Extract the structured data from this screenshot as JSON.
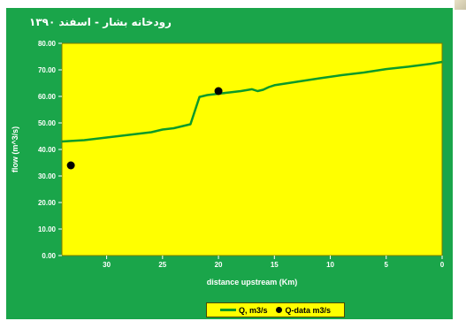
{
  "colors": {
    "panel": "#1aa54a",
    "plot_area": "#ffff00",
    "series_line": "#0b9a2a",
    "markers": "#000000",
    "text": "#ffffff"
  },
  "chart_data": {
    "type": "line",
    "title": "رودخانه بشار - اسفند ۱۳۹۰",
    "xlabel": "distance upstream (Km)",
    "ylabel": "flow (m^3/s)",
    "xlim": [
      34,
      0
    ],
    "ylim": [
      0,
      80
    ],
    "x_reversed": true,
    "xticks": [
      30,
      25,
      20,
      15,
      10,
      5,
      0
    ],
    "xtick_labels": [
      "30",
      "25",
      "20",
      "15",
      "10",
      "5",
      "0"
    ],
    "yticks": [
      0,
      10,
      20,
      30,
      40,
      50,
      60,
      70,
      80
    ],
    "ytick_labels": [
      "0.00",
      "10.00",
      "20.00",
      "30.00",
      "40.00",
      "50.00",
      "60.00",
      "70.00",
      "80.00"
    ],
    "grid": false,
    "legend_position": "bottom-center",
    "series": [
      {
        "name": "Q, m3/s",
        "kind": "line",
        "x": [
          34,
          32,
          30,
          28,
          27,
          26,
          25,
          24,
          23,
          22.5,
          21.7,
          21,
          20,
          19,
          18,
          17,
          16.5,
          16,
          15.5,
          15,
          13,
          11,
          9,
          7,
          5,
          3,
          1,
          0
        ],
        "y": [
          43,
          43.5,
          44.5,
          45.5,
          46,
          46.5,
          47.5,
          48,
          49,
          49.5,
          59.8,
          60.5,
          61,
          61.5,
          62,
          62.7,
          62,
          62.5,
          63.5,
          64.2,
          65.5,
          66.8,
          68,
          69,
          70.3,
          71.2,
          72.3,
          73
        ]
      },
      {
        "name": "Q-data m3/s",
        "kind": "scatter",
        "x": [
          33.2,
          20
        ],
        "y": [
          34,
          62
        ]
      }
    ]
  }
}
